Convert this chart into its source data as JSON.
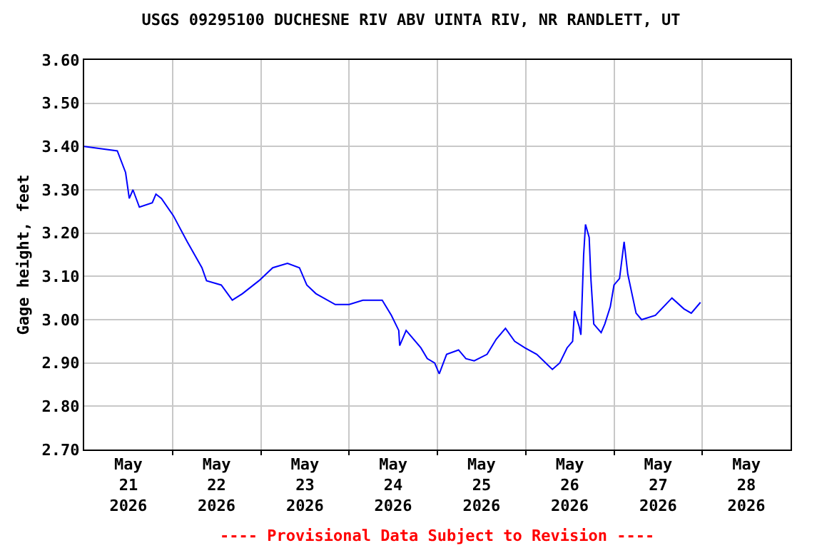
{
  "chart_data": {
    "type": "line",
    "title": "USGS 09295100 DUCHESNE RIV ABV UINTA RIV, NR RANDLETT, UT",
    "ylabel": "Gage height, feet",
    "annotations": [
      "---- Provisional Data Subject to Revision ----"
    ],
    "xlim": [
      "2026-05-21T00:00",
      "2026-05-29T00:00"
    ],
    "xticks": [
      {
        "value": "2026-05-21T12:00",
        "label": "May\n21\n2026"
      },
      {
        "value": "2026-05-22T12:00",
        "label": "May\n22\n2026"
      },
      {
        "value": "2026-05-23T12:00",
        "label": "May\n23\n2026"
      },
      {
        "value": "2026-05-24T12:00",
        "label": "May\n24\n2026"
      },
      {
        "value": "2026-05-25T12:00",
        "label": "May\n25\n2026"
      },
      {
        "value": "2026-05-26T12:00",
        "label": "May\n26\n2026"
      },
      {
        "value": "2026-05-27T12:00",
        "label": "May\n27\n2026"
      },
      {
        "value": "2026-05-28T12:00",
        "label": "May\n28\n2026"
      },
      {
        "value": "2026-05-22T00:00",
        "label": null
      },
      {
        "value": "2026-05-23T00:00",
        "label": null
      },
      {
        "value": "2026-05-24T00:00",
        "label": null
      },
      {
        "value": "2026-05-25T00:00",
        "label": null
      },
      {
        "value": "2026-05-26T00:00",
        "label": null
      },
      {
        "value": "2026-05-27T00:00",
        "label": null
      },
      {
        "value": "2026-05-28T00:00",
        "label": null
      }
    ],
    "ylim": [
      2.7,
      3.6
    ],
    "yticks": [
      {
        "value": 2.7,
        "label": "2.70"
      },
      {
        "value": 2.8,
        "label": "2.80"
      },
      {
        "value": 2.9,
        "label": "2.90"
      },
      {
        "value": 3.0,
        "label": "3.00"
      },
      {
        "value": 3.1,
        "label": "3.10"
      },
      {
        "value": 3.2,
        "label": "3.20"
      },
      {
        "value": 3.3,
        "label": "3.30"
      },
      {
        "value": 3.4,
        "label": "3.40"
      },
      {
        "value": 3.5,
        "label": "3.50"
      },
      {
        "value": 3.6,
        "label": "3.60"
      }
    ],
    "grid": true,
    "marker": "none",
    "line_style": "solid",
    "series": [
      {
        "color": "#0000ff",
        "x": [
          "2026-05-21T00:00",
          "2026-05-21T09:00",
          "2026-05-21T11:15",
          "2026-05-21T12:15",
          "2026-05-21T13:15",
          "2026-05-21T15:00",
          "2026-05-21T18:30",
          "2026-05-21T19:30",
          "2026-05-21T21:00",
          "2026-05-22T00:15",
          "2026-05-22T04:00",
          "2026-05-22T08:00",
          "2026-05-22T09:15",
          "2026-05-22T13:15",
          "2026-05-22T16:15",
          "2026-05-22T19:00",
          "2026-05-22T23:30",
          "2026-05-23T03:15",
          "2026-05-23T07:15",
          "2026-05-23T10:30",
          "2026-05-23T12:30",
          "2026-05-23T15:00",
          "2026-05-23T20:15",
          "2026-05-24T00:00",
          "2026-05-24T03:45",
          "2026-05-24T09:00",
          "2026-05-24T11:30",
          "2026-05-24T13:30",
          "2026-05-24T13:45",
          "2026-05-24T15:30",
          "2026-05-24T19:30",
          "2026-05-24T21:15",
          "2026-05-24T23:15",
          "2026-05-25T00:30",
          "2026-05-25T02:30",
          "2026-05-25T05:45",
          "2026-05-25T07:45",
          "2026-05-25T10:00",
          "2026-05-25T13:30",
          "2026-05-25T16:00",
          "2026-05-25T18:30",
          "2026-05-25T21:00",
          "2026-05-25T23:45",
          "2026-05-26T03:00",
          "2026-05-26T07:15",
          "2026-05-26T09:15",
          "2026-05-26T11:15",
          "2026-05-26T12:45",
          "2026-05-26T13:15",
          "2026-05-26T14:30",
          "2026-05-26T15:00",
          "2026-05-26T15:45",
          "2026-05-26T16:15",
          "2026-05-26T17:15",
          "2026-05-26T17:45",
          "2026-05-26T18:30",
          "2026-05-26T20:30",
          "2026-05-26T21:30",
          "2026-05-26T23:00",
          "2026-05-27T00:00",
          "2026-05-27T01:30",
          "2026-05-27T02:45",
          "2026-05-27T03:45",
          "2026-05-27T05:00",
          "2026-05-27T06:00",
          "2026-05-27T07:30",
          "2026-05-27T11:15",
          "2026-05-27T15:45",
          "2026-05-27T19:00",
          "2026-05-27T21:00",
          "2026-05-27T23:30"
        ],
        "values": [
          3.4,
          3.39,
          3.34,
          3.28,
          3.3,
          3.26,
          3.27,
          3.29,
          3.28,
          3.24,
          3.18,
          3.12,
          3.09,
          3.08,
          3.045,
          3.06,
          3.09,
          3.12,
          3.13,
          3.12,
          3.08,
          3.06,
          3.035,
          3.035,
          3.045,
          3.045,
          3.01,
          2.975,
          2.94,
          2.975,
          2.935,
          2.91,
          2.9,
          2.875,
          2.92,
          2.93,
          2.91,
          2.905,
          2.92,
          2.955,
          2.98,
          2.95,
          2.935,
          2.92,
          2.885,
          2.9,
          2.935,
          2.95,
          3.02,
          2.985,
          2.965,
          3.15,
          3.22,
          3.19,
          3.09,
          2.99,
          2.97,
          2.99,
          3.03,
          3.08,
          3.095,
          3.18,
          3.105,
          3.055,
          3.015,
          3.0,
          3.01,
          3.05,
          3.025,
          3.015,
          3.04
        ]
      }
    ]
  }
}
